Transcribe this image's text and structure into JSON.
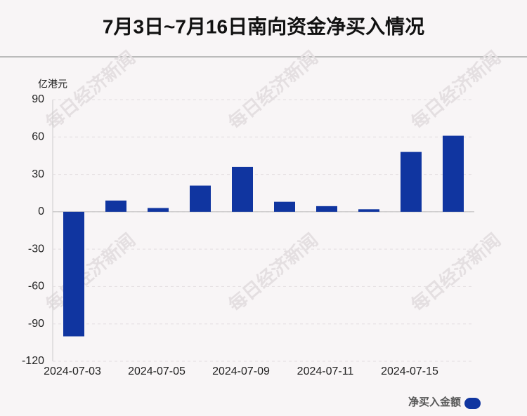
{
  "chart_data": {
    "type": "bar",
    "title": "7月3日~7月16日南向资金净买入情况",
    "y_unit": "亿港元",
    "watermark": "每日经济新闻",
    "categories": [
      "2024-07-03",
      null,
      "2024-07-05",
      null,
      "2024-07-09",
      null,
      "2024-07-11",
      null,
      "2024-07-15",
      null
    ],
    "series": [
      {
        "name": "净买入金额",
        "color": "#1035a0",
        "values": [
          -100,
          9,
          3,
          21,
          36,
          8,
          4.5,
          2,
          48,
          61
        ]
      }
    ],
    "ylim": [
      -120,
      90
    ],
    "yticks": [
      -120,
      -90,
      -60,
      -30,
      0,
      30,
      60,
      90
    ],
    "grid": true
  }
}
